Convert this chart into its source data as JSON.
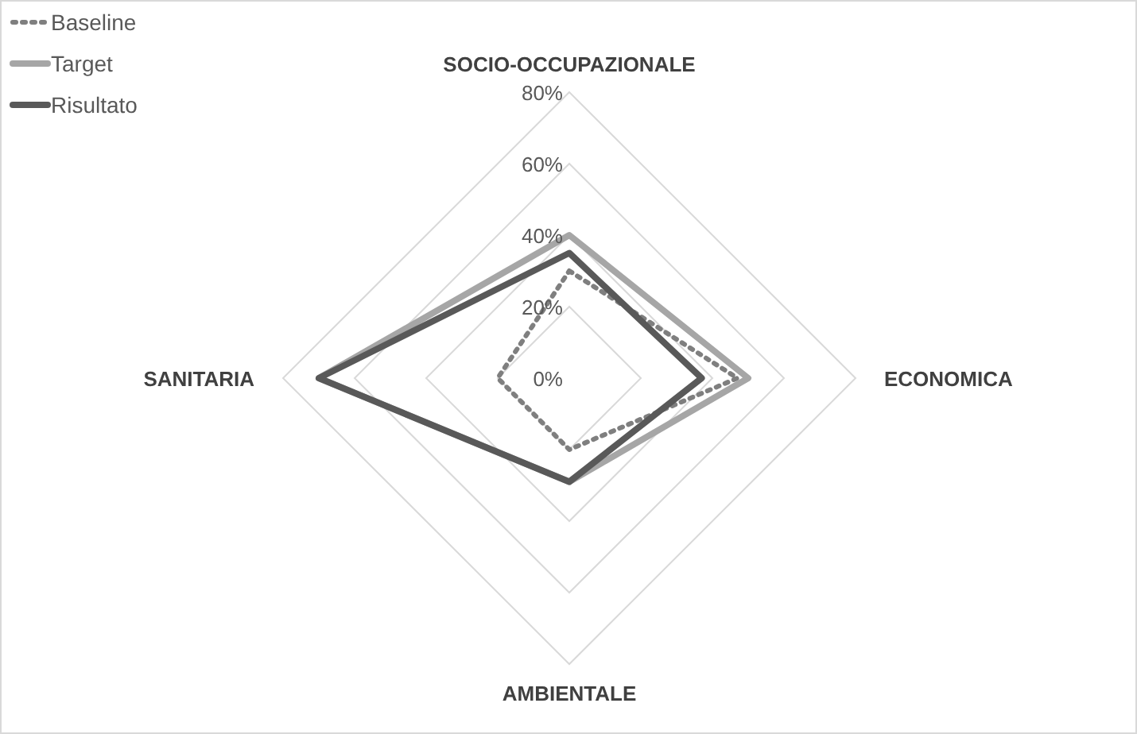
{
  "chart_data": {
    "type": "radar",
    "categories": [
      "SOCIO-OCCUPAZIONALE",
      "ECONOMICA",
      "AMBIENTALE",
      "SANITARIA"
    ],
    "series": [
      {
        "name": "Baseline",
        "color": "#7f7f7f",
        "line_style": "dotted",
        "values": [
          30,
          47,
          20,
          20
        ]
      },
      {
        "name": "Target",
        "color": "#a6a6a6",
        "line_style": "solid",
        "values": [
          40,
          50,
          29,
          70
        ]
      },
      {
        "name": "Risultato",
        "color": "#595959",
        "line_style": "solid",
        "values": [
          35,
          37,
          29,
          70
        ]
      }
    ],
    "ylim": [
      0,
      80
    ],
    "yticks": [
      {
        "value": 0,
        "label": "0%"
      },
      {
        "value": 20,
        "label": "20%"
      },
      {
        "value": 40,
        "label": "40%"
      },
      {
        "value": 60,
        "label": "60%"
      },
      {
        "value": 80,
        "label": "80%"
      }
    ],
    "grid": true,
    "legend": "top left"
  }
}
